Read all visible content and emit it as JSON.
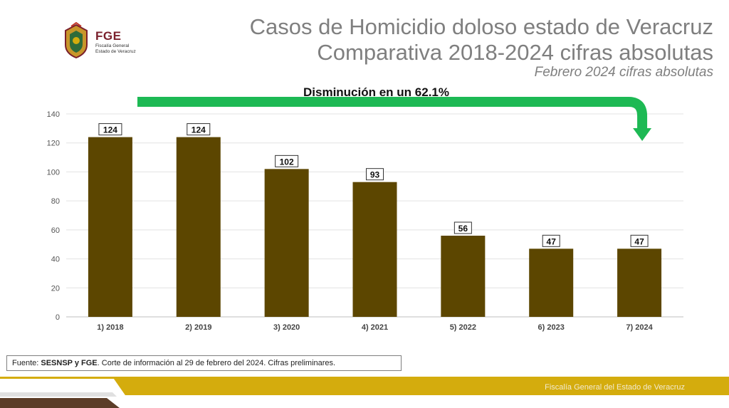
{
  "header": {
    "title_line1": "Casos de Homicidio doloso estado de Veracruz",
    "title_line2": "Comparativa 2018-2024 cifras absolutas",
    "subtitle": "Febrero 2024 cifras absolutas"
  },
  "logo": {
    "acronym": "FGE",
    "line1": "Fiscalía General",
    "line2": "Estado de Veracruz"
  },
  "annotation": {
    "text": "Disminución en un 62.1%",
    "arrow_color": "#1db954"
  },
  "source": {
    "label": "Fuente: ",
    "bold": "SESNSP y FGE",
    "rest": ". Corte de información al 29 de febrero del 2024. Cifras preliminares."
  },
  "footer": {
    "text": "Fiscalía General del Estado de Veracruz",
    "color_gold": "#d4ac0d",
    "color_dark": "#5c3d28"
  },
  "chart_data": {
    "type": "bar",
    "title": "",
    "xlabel": "",
    "ylabel": "",
    "categories": [
      "1) 2018",
      "2) 2019",
      "3) 2020",
      "4) 2021",
      "5) 2022",
      "6) 2023",
      "7) 2024"
    ],
    "values": [
      124,
      124,
      102,
      93,
      56,
      47,
      47
    ],
    "ylim": [
      0,
      140
    ],
    "yticks": [
      0,
      20,
      40,
      60,
      80,
      100,
      120,
      140
    ],
    "grid": true,
    "bar_color": "#5c4600",
    "data_labels": true
  }
}
